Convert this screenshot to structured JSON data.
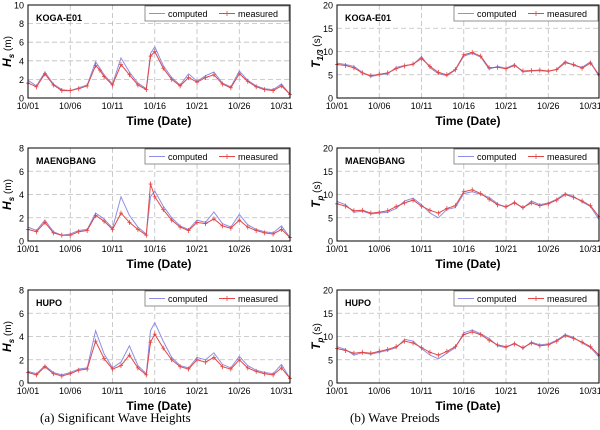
{
  "captions": {
    "left": "(a) Significant Wave Heights",
    "right": "(b) Wave Preiods"
  },
  "colors": {
    "computed": "#8e8ee6",
    "measured": "#e04848",
    "grid": "#bdbdbd"
  },
  "chart_data": [
    {
      "type": "line",
      "station": "KOGA-E01",
      "ylabel_main": "H",
      "ylabel_sub": "s",
      "ylabel_unit": "(m)",
      "xlabel": "Time (Date)",
      "x_ticks": [
        "10/01",
        "10/06",
        "10/11",
        "10/16",
        "10/21",
        "10/26",
        "10/31"
      ],
      "y_ticks": [
        "0",
        "2",
        "4",
        "6",
        "8",
        "10"
      ],
      "ylim": [
        0,
        10
      ],
      "xlim": [
        1,
        32
      ],
      "legend": [
        "computed",
        "measured"
      ],
      "series": [
        {
          "name": "computed",
          "x": [
            1,
            2,
            3,
            4,
            5,
            6,
            7,
            8,
            9,
            9.5,
            10,
            11,
            12,
            13,
            14,
            15,
            15.5,
            16,
            17,
            18,
            19,
            20,
            21,
            22,
            23,
            24,
            25,
            26,
            27,
            28,
            29,
            30,
            31,
            32
          ],
          "values": [
            1.9,
            1.3,
            2.8,
            1.5,
            0.9,
            0.8,
            1.1,
            1.4,
            3.9,
            3.2,
            2.5,
            1.5,
            4.3,
            2.8,
            1.6,
            1.0,
            4.8,
            5.5,
            3.5,
            2.2,
            1.4,
            2.6,
            1.8,
            2.4,
            2.8,
            1.6,
            1.2,
            2.9,
            1.9,
            1.3,
            1.0,
            0.9,
            1.5,
            0.4
          ]
        },
        {
          "name": "measured",
          "x": [
            1,
            2,
            3,
            4,
            5,
            6,
            7,
            8,
            9,
            9.5,
            10,
            11,
            12,
            13,
            14,
            15,
            15.5,
            16,
            17,
            18,
            19,
            20,
            21,
            22,
            23,
            24,
            25,
            26,
            27,
            28,
            29,
            30,
            31,
            32
          ],
          "values": [
            1.6,
            1.2,
            2.6,
            1.4,
            0.8,
            0.8,
            1.0,
            1.3,
            3.5,
            3.0,
            2.3,
            1.4,
            3.6,
            2.5,
            1.4,
            0.9,
            4.5,
            5.0,
            3.2,
            2.0,
            1.3,
            2.2,
            1.7,
            2.2,
            2.5,
            1.5,
            1.1,
            2.6,
            1.8,
            1.2,
            0.9,
            0.8,
            1.3,
            0.4
          ]
        }
      ]
    },
    {
      "type": "line",
      "station": "KOGA-E01",
      "ylabel_main": "T",
      "ylabel_sub": "1/3",
      "ylabel_unit": "(s)",
      "xlabel": "Time (Date)",
      "x_ticks": [
        "10/01",
        "10/06",
        "10/11",
        "10/16",
        "10/21",
        "10/26",
        "10/31"
      ],
      "y_ticks": [
        "0",
        "5",
        "10",
        "15",
        "20"
      ],
      "ylim": [
        0,
        20
      ],
      "xlim": [
        1,
        32
      ],
      "legend": [
        "computed",
        "measured"
      ],
      "series": [
        {
          "name": "computed",
          "x": [
            1,
            2,
            3,
            4,
            5,
            6,
            7,
            8,
            9,
            10,
            11,
            12,
            13,
            14,
            15,
            16,
            17,
            18,
            19,
            20,
            21,
            22,
            23,
            24,
            25,
            26,
            27,
            28,
            29,
            30,
            31,
            32
          ],
          "values": [
            7.5,
            7.2,
            6.8,
            5.5,
            4.6,
            5.0,
            5.2,
            6.6,
            7.0,
            7.2,
            8.9,
            6.5,
            5.2,
            4.8,
            6.0,
            9.0,
            9.6,
            8.8,
            6.2,
            6.8,
            6.4,
            7.2,
            5.6,
            5.8,
            5.9,
            5.7,
            6.2,
            7.9,
            7.0,
            6.6,
            7.8,
            4.6
          ]
        },
        {
          "name": "measured",
          "x": [
            1,
            2,
            3,
            4,
            5,
            6,
            7,
            8,
            9,
            10,
            11,
            12,
            13,
            14,
            15,
            16,
            17,
            18,
            19,
            20,
            21,
            22,
            23,
            24,
            25,
            26,
            27,
            28,
            29,
            30,
            31,
            32
          ],
          "values": [
            7.2,
            7.0,
            6.5,
            5.4,
            4.8,
            5.1,
            5.4,
            6.3,
            6.9,
            7.3,
            8.5,
            6.8,
            5.5,
            5.0,
            6.1,
            9.3,
            9.8,
            9.0,
            6.5,
            6.6,
            6.3,
            7.0,
            5.8,
            5.9,
            6.0,
            5.8,
            6.1,
            7.6,
            7.2,
            6.4,
            7.5,
            5.0
          ]
        }
      ]
    },
    {
      "type": "line",
      "station": "MAENGBANG",
      "ylabel_main": "H",
      "ylabel_sub": "s",
      "ylabel_unit": "(m)",
      "xlabel": "Time (Date)",
      "x_ticks": [
        "10/01",
        "10/06",
        "10/11",
        "10/16",
        "10/21",
        "10/26",
        "10/31"
      ],
      "y_ticks": [
        "0",
        "2",
        "4",
        "6",
        "8"
      ],
      "ylim": [
        0,
        8
      ],
      "xlim": [
        1,
        32
      ],
      "legend": [
        "computed",
        "measured"
      ],
      "series": [
        {
          "name": "computed",
          "x": [
            1,
            2,
            3,
            4,
            5,
            6,
            7,
            8,
            9,
            10,
            11,
            12,
            13,
            14,
            15,
            15.5,
            16,
            17,
            18,
            19,
            20,
            21,
            22,
            23,
            24,
            25,
            26,
            27,
            28,
            29,
            30,
            31,
            32
          ],
          "values": [
            1.2,
            0.9,
            1.8,
            0.8,
            0.5,
            0.6,
            0.9,
            1.0,
            2.4,
            1.9,
            1.1,
            3.8,
            2.2,
            1.2,
            0.6,
            3.8,
            4.3,
            3.0,
            2.0,
            1.3,
            1.0,
            1.8,
            1.6,
            2.5,
            1.5,
            1.2,
            2.3,
            1.4,
            1.0,
            0.8,
            0.7,
            1.3,
            0.3
          ]
        },
        {
          "name": "measured",
          "x": [
            1,
            2,
            3,
            4,
            5,
            6,
            7,
            8,
            9,
            10,
            11,
            12,
            13,
            14,
            15,
            15.5,
            16,
            17,
            18,
            19,
            20,
            21,
            22,
            23,
            24,
            25,
            26,
            27,
            28,
            29,
            30,
            31,
            32
          ],
          "values": [
            1.0,
            0.8,
            1.6,
            0.7,
            0.5,
            0.5,
            0.8,
            0.9,
            2.2,
            1.7,
            1.0,
            2.4,
            1.6,
            1.0,
            0.5,
            4.9,
            3.8,
            2.7,
            1.8,
            1.2,
            0.9,
            1.6,
            1.5,
            1.9,
            1.3,
            1.1,
            1.8,
            1.2,
            0.9,
            0.7,
            0.6,
            1.0,
            0.3
          ]
        }
      ]
    },
    {
      "type": "line",
      "station": "MAENGBANG",
      "ylabel_main": "T",
      "ylabel_sub": "p",
      "ylabel_unit": "(s)",
      "xlabel": "Time (Date)",
      "x_ticks": [
        "10/01",
        "10/06",
        "10/11",
        "10/16",
        "10/21",
        "10/26",
        "10/31"
      ],
      "y_ticks": [
        "0",
        "5",
        "10",
        "15",
        "20"
      ],
      "ylim": [
        0,
        20
      ],
      "xlim": [
        1,
        32
      ],
      "legend": [
        "computed",
        "measured"
      ],
      "series": [
        {
          "name": "computed",
          "x": [
            1,
            2,
            3,
            4,
            5,
            6,
            7,
            8,
            9,
            10,
            11,
            12,
            13,
            14,
            15,
            16,
            17,
            18,
            19,
            20,
            21,
            22,
            23,
            24,
            25,
            26,
            27,
            28,
            29,
            30,
            31,
            32
          ],
          "values": [
            8.5,
            7.8,
            6.2,
            6.4,
            5.8,
            6.0,
            6.2,
            7.0,
            8.6,
            9.2,
            7.8,
            6.0,
            5.0,
            6.8,
            7.2,
            10.2,
            10.6,
            10.0,
            9.4,
            8.0,
            7.2,
            8.4,
            7.0,
            8.6,
            7.8,
            8.2,
            9.0,
            10.2,
            9.6,
            8.4,
            7.4,
            4.6
          ]
        },
        {
          "name": "measured",
          "x": [
            1,
            2,
            3,
            4,
            5,
            6,
            7,
            8,
            9,
            10,
            11,
            12,
            13,
            14,
            15,
            16,
            17,
            18,
            19,
            20,
            21,
            22,
            23,
            24,
            25,
            26,
            27,
            28,
            29,
            30,
            31,
            32
          ],
          "values": [
            8.0,
            7.5,
            6.5,
            6.6,
            6.0,
            6.2,
            6.5,
            7.4,
            8.2,
            8.8,
            7.5,
            6.6,
            6.0,
            7.0,
            7.6,
            10.6,
            11.0,
            10.2,
            9.0,
            7.8,
            7.4,
            8.2,
            7.2,
            8.2,
            7.6,
            8.0,
            8.8,
            10.0,
            9.4,
            8.6,
            7.6,
            5.2
          ]
        }
      ]
    },
    {
      "type": "line",
      "station": "HUPO",
      "ylabel_main": "H",
      "ylabel_sub": "s",
      "ylabel_unit": "(m)",
      "xlabel": "Time (Date)",
      "x_ticks": [
        "10/01",
        "10/06",
        "10/11",
        "10/16",
        "10/21",
        "10/26",
        "10/31"
      ],
      "y_ticks": [
        "0",
        "2",
        "4",
        "6",
        "8"
      ],
      "ylim": [
        0,
        8
      ],
      "xlim": [
        1,
        32
      ],
      "legend": [
        "computed",
        "measured"
      ],
      "series": [
        {
          "name": "computed",
          "x": [
            1,
            2,
            3,
            4,
            5,
            6,
            7,
            8,
            9,
            10,
            11,
            12,
            13,
            14,
            15,
            15.5,
            16,
            17,
            18,
            19,
            20,
            21,
            22,
            23,
            24,
            25,
            26,
            27,
            28,
            29,
            30,
            31,
            32
          ],
          "values": [
            1.0,
            0.8,
            1.5,
            0.9,
            0.7,
            0.9,
            1.2,
            1.3,
            4.5,
            2.5,
            1.3,
            1.8,
            3.2,
            1.5,
            0.8,
            4.5,
            5.2,
            3.6,
            2.2,
            1.5,
            1.3,
            2.2,
            2.0,
            2.6,
            1.6,
            1.3,
            2.3,
            1.5,
            1.1,
            0.9,
            0.8,
            1.6,
            0.4
          ]
        },
        {
          "name": "measured",
          "x": [
            1,
            2,
            3,
            4,
            5,
            6,
            7,
            8,
            9,
            10,
            11,
            12,
            13,
            14,
            15,
            15.5,
            16,
            17,
            18,
            19,
            20,
            21,
            22,
            23,
            24,
            25,
            26,
            27,
            28,
            29,
            30,
            31,
            32
          ],
          "values": [
            0.9,
            0.7,
            1.4,
            0.8,
            0.6,
            0.8,
            1.1,
            1.2,
            3.6,
            2.1,
            1.2,
            1.5,
            2.4,
            1.3,
            0.7,
            3.5,
            4.2,
            3.0,
            2.0,
            1.4,
            1.2,
            2.0,
            1.8,
            2.2,
            1.4,
            1.2,
            2.0,
            1.3,
            1.0,
            0.8,
            0.7,
            1.3,
            0.4
          ]
        }
      ]
    },
    {
      "type": "line",
      "station": "HUPO",
      "ylabel_main": "T",
      "ylabel_sub": "p",
      "ylabel_unit": "(s)",
      "xlabel": "Time (Date)",
      "x_ticks": [
        "10/01",
        "10/06",
        "10/11",
        "10/16",
        "10/21",
        "10/26",
        "10/31"
      ],
      "y_ticks": [
        "0",
        "5",
        "10",
        "15",
        "20"
      ],
      "ylim": [
        0,
        20
      ],
      "xlim": [
        1,
        32
      ],
      "legend": [
        "computed",
        "measured"
      ],
      "series": [
        {
          "name": "computed",
          "x": [
            1,
            2,
            3,
            4,
            5,
            6,
            7,
            8,
            9,
            10,
            11,
            12,
            13,
            14,
            15,
            16,
            17,
            18,
            19,
            20,
            21,
            22,
            23,
            24,
            25,
            26,
            27,
            28,
            29,
            30,
            31,
            32
          ],
          "values": [
            7.8,
            7.2,
            6.0,
            6.5,
            6.2,
            6.6,
            7.0,
            7.6,
            9.4,
            9.0,
            7.4,
            6.0,
            5.2,
            6.4,
            7.6,
            10.8,
            11.4,
            10.6,
            9.6,
            8.0,
            7.6,
            8.6,
            7.4,
            8.8,
            8.2,
            8.4,
            9.2,
            10.4,
            9.8,
            8.6,
            7.6,
            5.6
          ]
        },
        {
          "name": "measured",
          "x": [
            1,
            2,
            3,
            4,
            5,
            6,
            7,
            8,
            9,
            10,
            11,
            12,
            13,
            14,
            15,
            16,
            17,
            18,
            19,
            20,
            21,
            22,
            23,
            24,
            25,
            26,
            27,
            28,
            29,
            30,
            31,
            32
          ],
          "values": [
            7.4,
            7.0,
            6.4,
            6.6,
            6.4,
            6.8,
            7.2,
            7.8,
            9.0,
            8.6,
            7.6,
            6.6,
            6.0,
            6.8,
            7.8,
            10.4,
            11.0,
            10.4,
            9.2,
            8.2,
            7.8,
            8.4,
            7.6,
            8.6,
            8.0,
            8.2,
            9.0,
            10.2,
            9.6,
            8.8,
            7.8,
            6.0
          ]
        }
      ]
    }
  ]
}
